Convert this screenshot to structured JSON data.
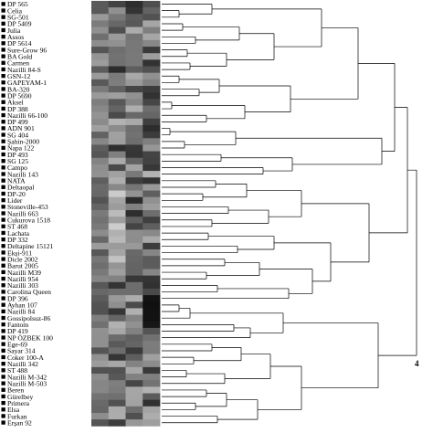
{
  "labels": [
    "DP 565",
    "Celia",
    "SG-501",
    "DP 5409",
    "Julia",
    "Assos",
    "DP 5614",
    "Sure-Grow 96",
    "BA Gold",
    "Carmen",
    "Nazilli 84-S",
    "GSN-12",
    "GAPEYAM-1",
    "BA-320",
    "DP 5690",
    "Aksel",
    "DP 388",
    "Nazilli 66-100",
    "DP 499",
    "ADN 901",
    "SG 404",
    "Şahin-2000",
    "Napa 122",
    "DP 493",
    "SG 125",
    "Campo",
    "Nazilli 143",
    "NATA",
    "Deltaopal",
    "DP-20",
    "Lider",
    "Stoneville-453",
    "Nazilli 663",
    "Cukurova 1518",
    "ST 468",
    "Lachata",
    "DP 332",
    "Deltapine 15121",
    "Ekşi-911",
    "Dicle 2002",
    "Barut 2005",
    "Nazilli M39",
    "Nazilli 954",
    "Nazilli 303",
    "Carolina Queen",
    "DP 396",
    "Ayhan 107",
    "Nazilli 84",
    "Gossipolsuz-86",
    "Fantom",
    "DP 419",
    "NP ÖZBEK 100",
    "Ege-69",
    "Sayar 314",
    "Coker 100-A",
    "Nazilli 342",
    "ST 488",
    "Nazilli M-342",
    "Nazilli M-503",
    "Beren",
    "Gürelbey",
    "Primera",
    "Elsa",
    "Furkan",
    "Erşan 92"
  ],
  "cluster_labels": [
    "4"
  ],
  "colors": {
    "ink": "#000000",
    "background": "#ffffff"
  },
  "heatmap_columns": 4
}
